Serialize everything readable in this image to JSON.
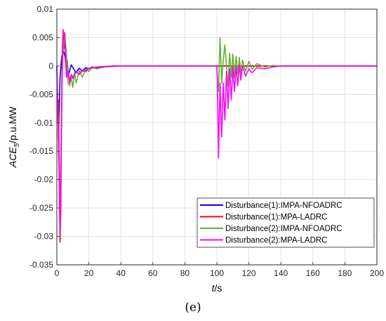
{
  "panel_label": "(e)",
  "chart_data": {
    "type": "line",
    "xlabel_var": "t",
    "xlabel_unit": "/s",
    "ylabel_var": "ACE",
    "ylabel_sub": "5",
    "ylabel_unit": "/p.u.MW",
    "xlim": [
      0,
      200
    ],
    "ylim": [
      -0.035,
      0.01
    ],
    "xticks": [
      0,
      20,
      40,
      60,
      80,
      100,
      120,
      140,
      160,
      180,
      200
    ],
    "yticks": [
      0.01,
      0.005,
      0,
      -0.005,
      -0.01,
      -0.015,
      -0.02,
      -0.025,
      -0.03,
      -0.035
    ],
    "ytick_labels": [
      "0.01",
      "0.005",
      "0",
      "-0.005",
      "-0.01",
      "-0.015",
      "-0.02",
      "-0.025",
      "-0.03",
      "-0.035"
    ],
    "grid": true,
    "legend_position": "bottom-right",
    "series": [
      {
        "name": "Disturbance(1):IMPA-NFOADRC",
        "color": "#0000ff",
        "x": [
          0,
          1,
          2,
          3,
          4,
          5,
          6,
          7,
          8,
          9,
          10,
          12,
          14,
          16,
          18,
          20,
          22,
          25,
          30,
          35,
          40,
          50,
          60,
          70,
          80,
          90,
          100,
          110,
          120,
          130,
          140,
          150,
          160,
          170,
          180,
          190,
          200
        ],
        "y": [
          0,
          -0.013,
          -0.002,
          0.0015,
          0.0028,
          0.0018,
          -0.0004,
          -0.0018,
          -0.0008,
          0.0002,
          -0.0003,
          -0.0012,
          -0.0004,
          -0.0009,
          -0.0003,
          -0.0005,
          -0.0002,
          -0.0003,
          -0.0001,
          0,
          0,
          0,
          0,
          0,
          0,
          0,
          0,
          0,
          0,
          0,
          0,
          0,
          0,
          0,
          0,
          0,
          0
        ]
      },
      {
        "name": "Disturbance(1):MPA-LADRC",
        "color": "#ff0000",
        "x": [
          0,
          0.5,
          1,
          1.5,
          2,
          2.5,
          3,
          3.5,
          4,
          4.5,
          5,
          5.5,
          6,
          6.5,
          7,
          8,
          9,
          10,
          12,
          14,
          16,
          18,
          20,
          25,
          30,
          40,
          50,
          60,
          70,
          80,
          90,
          100,
          120,
          140,
          160,
          180,
          200
        ],
        "y": [
          0,
          -0.008,
          -0.006,
          -0.018,
          -0.031,
          -0.025,
          -0.005,
          0.004,
          0.0064,
          0.003,
          0.0058,
          0.001,
          -0.002,
          0.001,
          -0.001,
          -0.0025,
          -0.0015,
          -0.002,
          -0.001,
          -0.0015,
          -0.0008,
          -0.001,
          -0.0005,
          -0.0002,
          -0.0001,
          0,
          0,
          0,
          0,
          0,
          0,
          0,
          0,
          0,
          0,
          0,
          0
        ]
      },
      {
        "name": "Disturbance(2):IMPA-NFOADRC",
        "color": "#66b032",
        "x": [
          0,
          2,
          3,
          4,
          5,
          6,
          7,
          8,
          9,
          10,
          11,
          12,
          14,
          16,
          18,
          20,
          22,
          25,
          30,
          40,
          60,
          80,
          100,
          100.5,
          101,
          101.5,
          102,
          102.5,
          103,
          104,
          105,
          106,
          107,
          108,
          109,
          110,
          111,
          112,
          113,
          114,
          115,
          116,
          118,
          120,
          122,
          125,
          130,
          135,
          140,
          160,
          180,
          200
        ],
        "y": [
          0,
          -0.028,
          -0.004,
          0.003,
          0.0055,
          0.002,
          -0.003,
          -0.0035,
          -0.002,
          -0.0038,
          -0.001,
          -0.003,
          -0.0008,
          -0.002,
          -0.0005,
          -0.001,
          -0.0003,
          -0.0005,
          -0.0002,
          0,
          0,
          0,
          0,
          -0.003,
          -0.0045,
          0.0005,
          0.005,
          0.001,
          -0.003,
          0.001,
          0.0037,
          0,
          -0.0035,
          0.0023,
          -0.002,
          0.0021,
          -0.002,
          0.0017,
          -0.0015,
          0.0015,
          -0.0013,
          0.001,
          -0.0009,
          0.0008,
          -0.0006,
          0.0004,
          -0.0002,
          0.0001,
          0,
          0,
          0,
          0
        ]
      },
      {
        "name": "Disturbance(2):MPA-LADRC",
        "color": "#ff00ff",
        "x": [
          0,
          1,
          2,
          3,
          3.5,
          4,
          4.5,
          5,
          5.5,
          6,
          7,
          8,
          9,
          10,
          12,
          14,
          16,
          18,
          20,
          25,
          30,
          40,
          60,
          80,
          100,
          100.5,
          101,
          101.5,
          102,
          102.5,
          103,
          104,
          105,
          106,
          107,
          108,
          109,
          110,
          111,
          112,
          113,
          114,
          115,
          116,
          118,
          120,
          122,
          125,
          130,
          135,
          140,
          160,
          180,
          200
        ],
        "y": [
          0,
          -0.012,
          -0.03,
          -0.01,
          0.002,
          0.0064,
          0.0055,
          0.0057,
          0.002,
          -0.002,
          -0.001,
          -0.003,
          -0.0015,
          -0.0022,
          -0.001,
          -0.0015,
          -0.0007,
          -0.0009,
          -0.0004,
          -0.0002,
          -0.0001,
          0,
          0,
          0,
          0,
          -0.005,
          -0.0162,
          -0.0095,
          -0.003,
          -0.0085,
          -0.0125,
          -0.003,
          -0.0095,
          -0.001,
          -0.0075,
          -0.0005,
          -0.006,
          -0.0002,
          -0.0045,
          0,
          -0.0035,
          0.0001,
          -0.0025,
          0,
          -0.0018,
          -0.0005,
          -0.0012,
          -0.0003,
          -0.0005,
          -0.0002,
          0,
          0,
          0,
          0
        ]
      }
    ]
  }
}
